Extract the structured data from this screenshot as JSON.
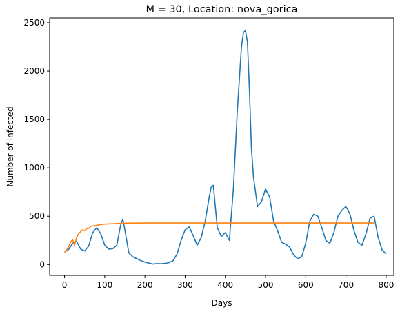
{
  "chart_data": {
    "type": "line",
    "title": "M = 30, Location: nova_gorica",
    "xlabel": "Days",
    "ylabel": "Number of infected",
    "xlim": [
      -37,
      819
    ],
    "ylim": [
      -112,
      2550
    ],
    "xticks": [
      0,
      100,
      200,
      300,
      400,
      500,
      600,
      700,
      800
    ],
    "yticks": [
      0,
      500,
      1000,
      1500,
      2000,
      2500
    ],
    "grid": false,
    "legend": "none",
    "series": [
      {
        "color": "#1f77b4",
        "x": [
          0,
          10,
          20,
          30,
          40,
          50,
          60,
          70,
          80,
          90,
          100,
          110,
          120,
          130,
          140,
          145,
          150,
          160,
          170,
          180,
          190,
          200,
          210,
          220,
          230,
          240,
          250,
          260,
          270,
          280,
          290,
          300,
          310,
          320,
          330,
          340,
          350,
          360,
          365,
          370,
          375,
          380,
          390,
          400,
          410,
          420,
          430,
          440,
          445,
          450,
          455,
          460,
          465,
          470,
          480,
          490,
          500,
          510,
          520,
          530,
          540,
          550,
          560,
          570,
          580,
          590,
          600,
          610,
          620,
          630,
          640,
          650,
          660,
          670,
          680,
          690,
          700,
          710,
          720,
          730,
          740,
          750,
          760,
          770,
          780,
          790,
          800
        ],
        "y": [
          130,
          155,
          220,
          240,
          160,
          140,
          190,
          330,
          380,
          320,
          200,
          160,
          165,
          200,
          420,
          470,
          360,
          120,
          80,
          60,
          40,
          25,
          15,
          5,
          10,
          8,
          12,
          20,
          40,
          110,
          250,
          360,
          390,
          300,
          200,
          280,
          450,
          700,
          800,
          820,
          600,
          380,
          290,
          330,
          250,
          780,
          1600,
          2250,
          2400,
          2420,
          2300,
          1800,
          1200,
          900,
          600,
          650,
          780,
          700,
          450,
          350,
          230,
          210,
          180,
          100,
          60,
          80,
          220,
          450,
          520,
          500,
          380,
          250,
          220,
          330,
          500,
          560,
          600,
          520,
          350,
          230,
          200,
          320,
          480,
          500,
          280,
          150,
          110
        ]
      },
      {
        "color": "#ff7f0e",
        "x": [
          0,
          5,
          10,
          15,
          20,
          25,
          30,
          35,
          40,
          45,
          50,
          55,
          60,
          65,
          70,
          80,
          90,
          100,
          120,
          150,
          200,
          300,
          400,
          500,
          600,
          700,
          770
        ],
        "y": [
          125,
          150,
          180,
          230,
          260,
          200,
          280,
          320,
          340,
          360,
          350,
          370,
          375,
          395,
          400,
          405,
          415,
          418,
          422,
          428,
          430,
          430,
          430,
          430,
          430,
          430,
          430
        ]
      }
    ]
  }
}
